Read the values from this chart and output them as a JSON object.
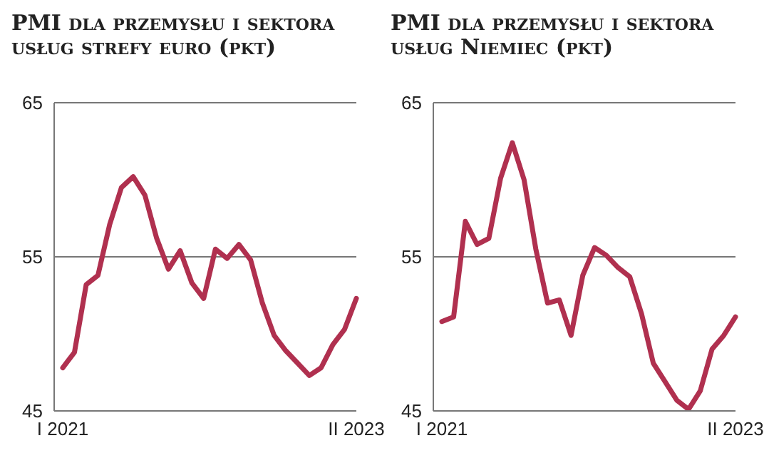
{
  "chart_data": [
    {
      "type": "line",
      "title": "PMI dla przemysłu i sektora usług strefy euro (pkt)",
      "categories": [
        "I 2021",
        null,
        null,
        null,
        null,
        null,
        null,
        null,
        null,
        null,
        null,
        null,
        null,
        null,
        null,
        null,
        null,
        null,
        null,
        null,
        null,
        null,
        null,
        null,
        null,
        "II 2023"
      ],
      "series": [
        {
          "color": "#b0304f",
          "values": [
            47.8,
            48.8,
            53.2,
            53.8,
            57.1,
            59.5,
            60.2,
            59.0,
            56.2,
            54.2,
            55.4,
            53.3,
            52.3,
            55.5,
            54.9,
            55.8,
            54.8,
            52.0,
            49.9,
            48.9,
            48.1,
            47.3,
            47.8,
            49.3,
            50.3,
            52.3
          ]
        }
      ],
      "ylim": [
        45,
        65
      ],
      "yticks": [
        45,
        55,
        65
      ],
      "grid": "y"
    },
    {
      "type": "line",
      "title": "PMI dla przemysłu i sektora usług Niemiec (pkt)",
      "categories": [
        "I 2021",
        null,
        null,
        null,
        null,
        null,
        null,
        null,
        null,
        null,
        null,
        null,
        null,
        null,
        null,
        null,
        null,
        null,
        null,
        null,
        null,
        null,
        null,
        null,
        null,
        "II 2023"
      ],
      "series": [
        {
          "color": "#b0304f",
          "values": [
            50.8,
            51.1,
            57.3,
            55.8,
            56.2,
            60.1,
            62.4,
            60.0,
            55.5,
            52.0,
            52.2,
            49.9,
            53.8,
            55.6,
            55.1,
            54.3,
            53.7,
            51.3,
            48.1,
            46.9,
            45.7,
            45.1,
            46.3,
            49.0,
            49.9,
            51.1
          ]
        }
      ],
      "ylim": [
        45,
        65
      ],
      "yticks": [
        45,
        55,
        65
      ],
      "grid": "y"
    }
  ]
}
